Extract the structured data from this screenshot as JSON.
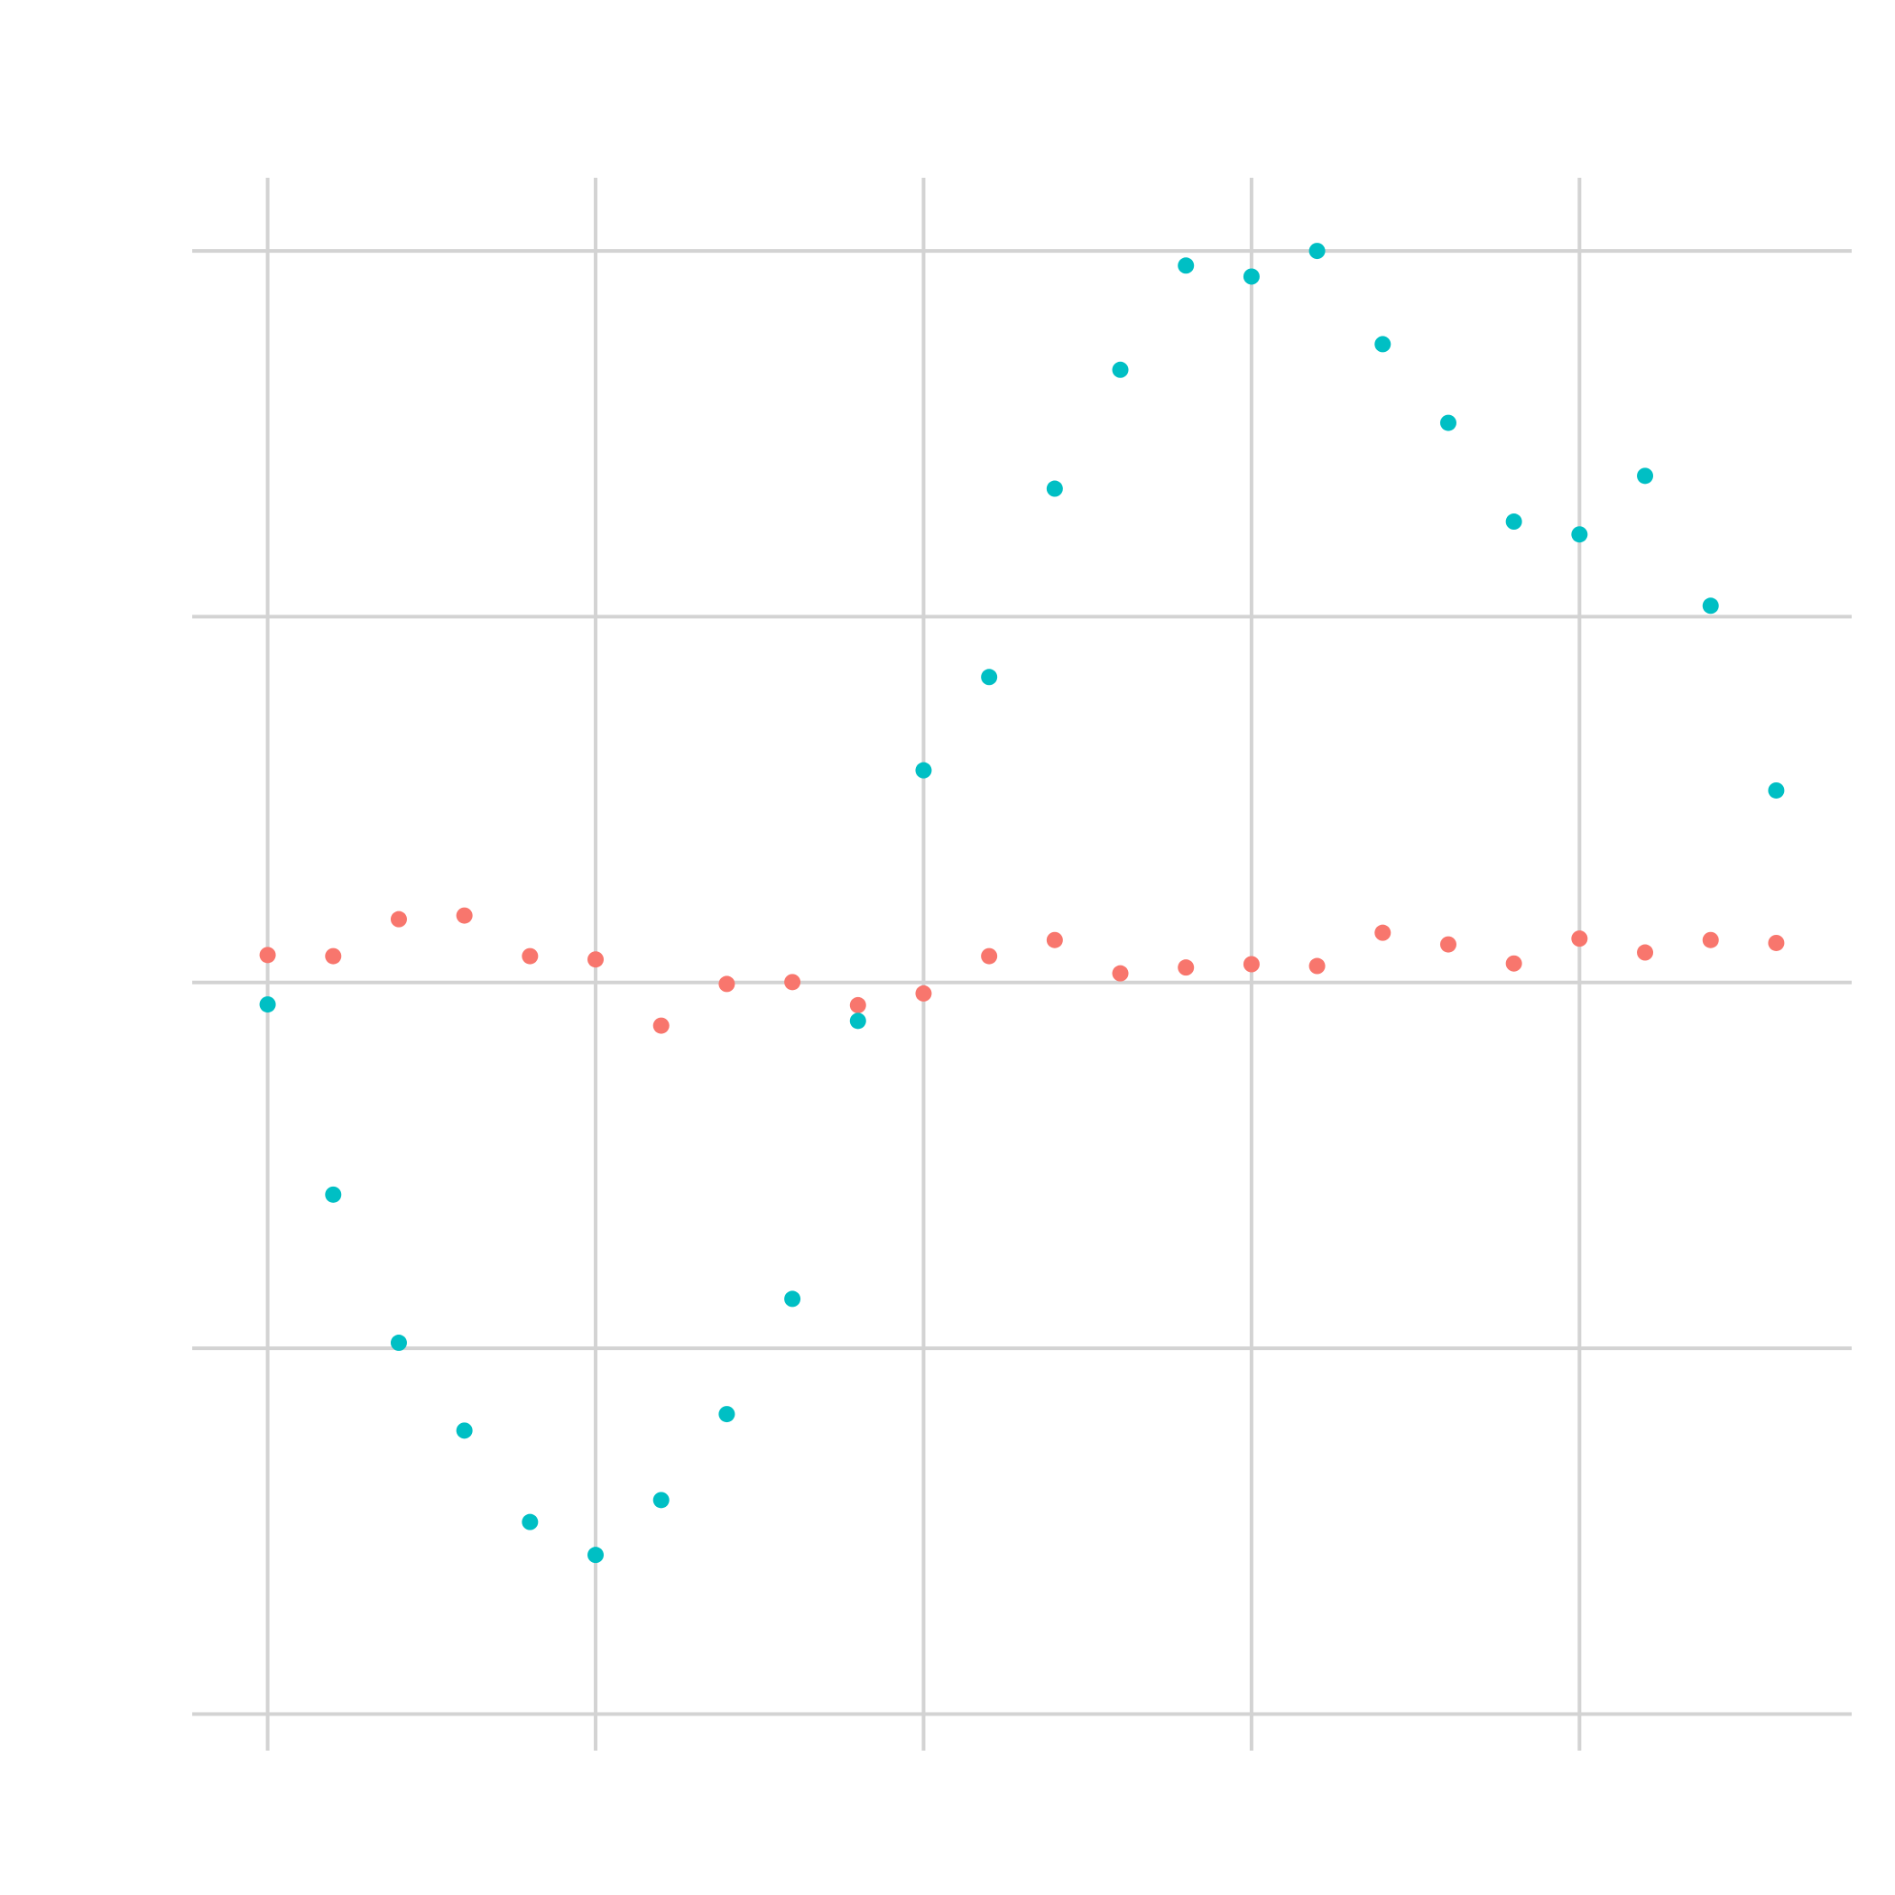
{
  "chart_data": {
    "type": "scatter",
    "title": "",
    "xlabel": "",
    "ylabel": "",
    "xlim": [
      -0.23,
      4.83
    ],
    "ylim": [
      -2.1,
      2.2
    ],
    "x_grid": [
      0,
      1,
      2,
      3,
      4
    ],
    "y_grid": [
      -2,
      -1,
      0,
      1,
      2
    ],
    "grid": true,
    "legend": "none",
    "series": [
      {
        "color": "#F8766D",
        "points": [
          [
            0.0,
            0.075
          ],
          [
            0.2,
            0.072
          ],
          [
            0.4,
            0.173
          ],
          [
            0.6,
            0.183
          ],
          [
            0.8,
            0.072
          ],
          [
            1.0,
            0.063
          ],
          [
            1.2,
            -0.118
          ],
          [
            1.4,
            -0.004
          ],
          [
            1.6,
            0.001
          ],
          [
            1.8,
            -0.062
          ],
          [
            2.0,
            -0.03
          ],
          [
            2.2,
            0.072
          ],
          [
            2.4,
            0.116
          ],
          [
            2.6,
            0.025
          ],
          [
            2.8,
            0.041
          ],
          [
            3.0,
            0.05
          ],
          [
            3.2,
            0.045
          ],
          [
            3.4,
            0.136
          ],
          [
            3.6,
            0.104
          ],
          [
            3.8,
            0.052
          ],
          [
            4.0,
            0.12
          ],
          [
            4.2,
            0.082
          ],
          [
            4.4,
            0.116
          ],
          [
            4.6,
            0.108
          ]
        ]
      },
      {
        "color": "#00BFC4",
        "points": [
          [
            0.0,
            -0.06
          ],
          [
            0.2,
            -0.58
          ],
          [
            0.4,
            -0.985
          ],
          [
            0.6,
            -1.225
          ],
          [
            0.8,
            -1.475
          ],
          [
            1.0,
            -1.565
          ],
          [
            1.2,
            -1.415
          ],
          [
            1.4,
            -1.18
          ],
          [
            1.6,
            -0.865
          ],
          [
            1.8,
            -0.105
          ],
          [
            2.0,
            0.58
          ],
          [
            2.2,
            0.835
          ],
          [
            2.4,
            1.35
          ],
          [
            2.6,
            1.675
          ],
          [
            2.8,
            1.96
          ],
          [
            3.0,
            1.93
          ],
          [
            3.2,
            2.0
          ],
          [
            3.4,
            1.745
          ],
          [
            3.6,
            1.53
          ],
          [
            3.8,
            1.26
          ],
          [
            4.0,
            1.225
          ],
          [
            4.2,
            1.385
          ],
          [
            4.4,
            1.03
          ],
          [
            4.6,
            0.525
          ]
        ]
      }
    ]
  }
}
